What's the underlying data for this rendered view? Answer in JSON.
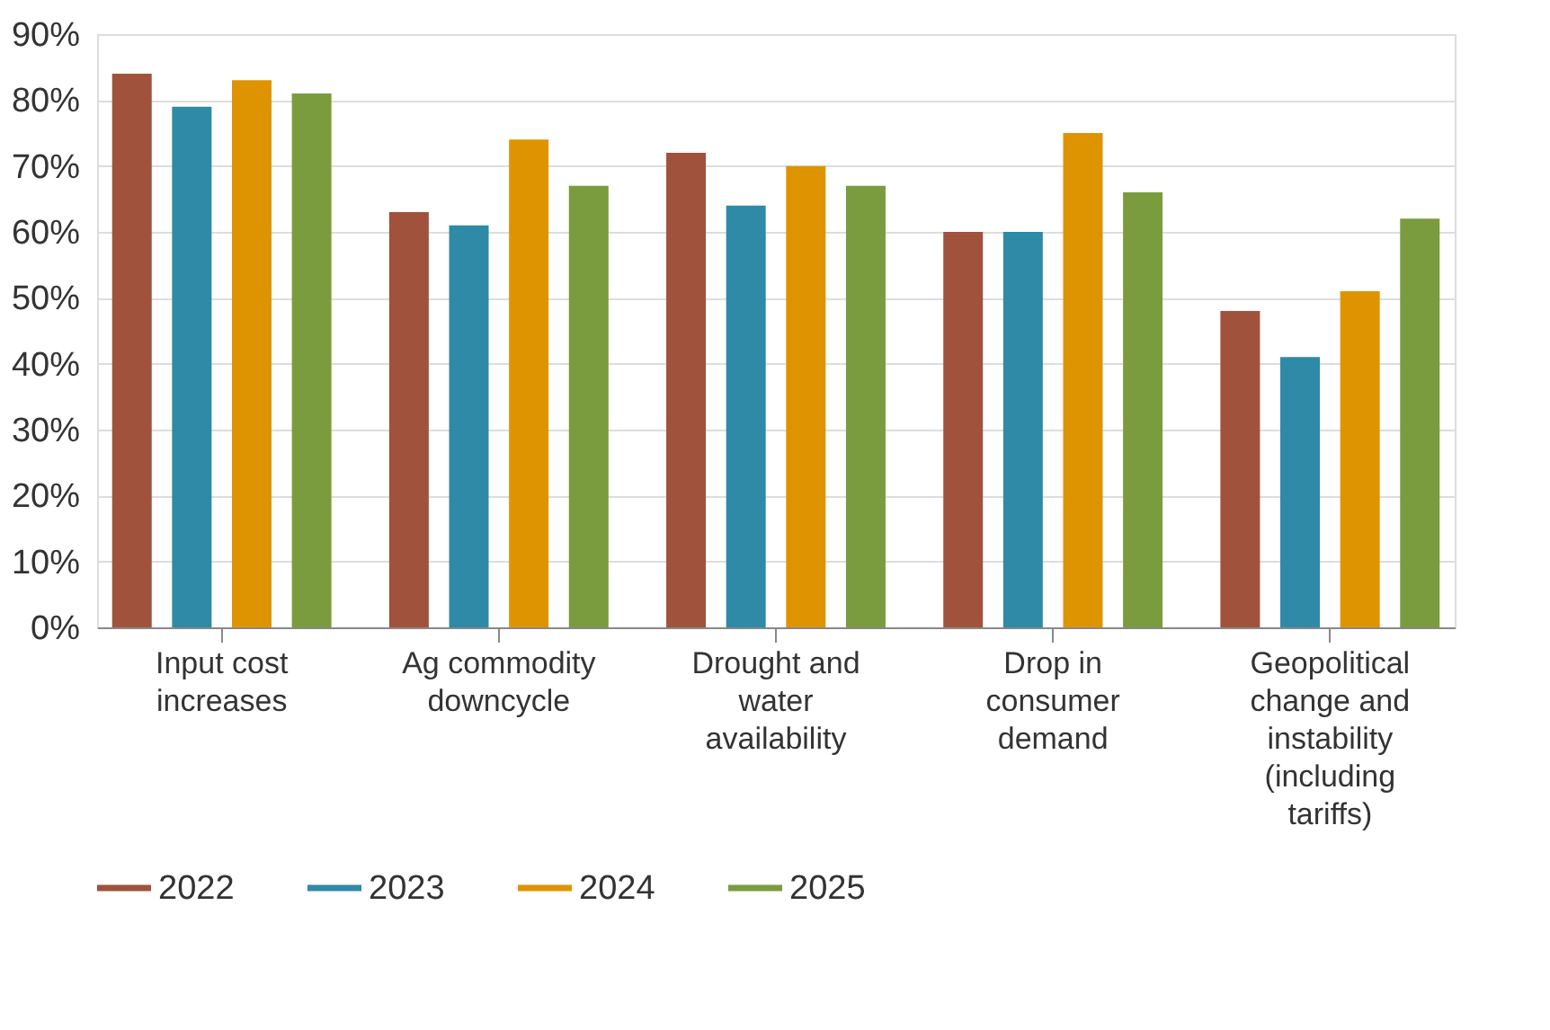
{
  "chart_data": {
    "type": "bar",
    "categories": [
      "Input cost increases",
      "Ag commodity downcycle",
      "Drought and water availability",
      "Drop in consumer demand",
      "Geopolitical change and instability (including tariffs)"
    ],
    "series": [
      {
        "name": "2022",
        "color": "#a0523d",
        "values": [
          84,
          63,
          72,
          60,
          48
        ]
      },
      {
        "name": "2023",
        "color": "#2e8aa6",
        "values": [
          79,
          61,
          64,
          60,
          41
        ]
      },
      {
        "name": "2024",
        "color": "#de9400",
        "values": [
          83,
          74,
          70,
          75,
          51
        ]
      },
      {
        "name": "2025",
        "color": "#7a9c3e",
        "values": [
          81,
          67,
          67,
          66,
          62
        ]
      }
    ],
    "ylim": [
      0,
      90
    ],
    "yticks": [
      {
        "value": 0,
        "label": "0%"
      },
      {
        "value": 10,
        "label": "10%"
      },
      {
        "value": 20,
        "label": "20%"
      },
      {
        "value": 30,
        "label": "30%"
      },
      {
        "value": 40,
        "label": "40%"
      },
      {
        "value": 50,
        "label": "50%"
      },
      {
        "value": 60,
        "label": "60%"
      },
      {
        "value": 70,
        "label": "70%"
      },
      {
        "value": 80,
        "label": "80%"
      },
      {
        "value": 90,
        "label": "90%"
      }
    ],
    "grid": "y",
    "legend": "bottom"
  }
}
